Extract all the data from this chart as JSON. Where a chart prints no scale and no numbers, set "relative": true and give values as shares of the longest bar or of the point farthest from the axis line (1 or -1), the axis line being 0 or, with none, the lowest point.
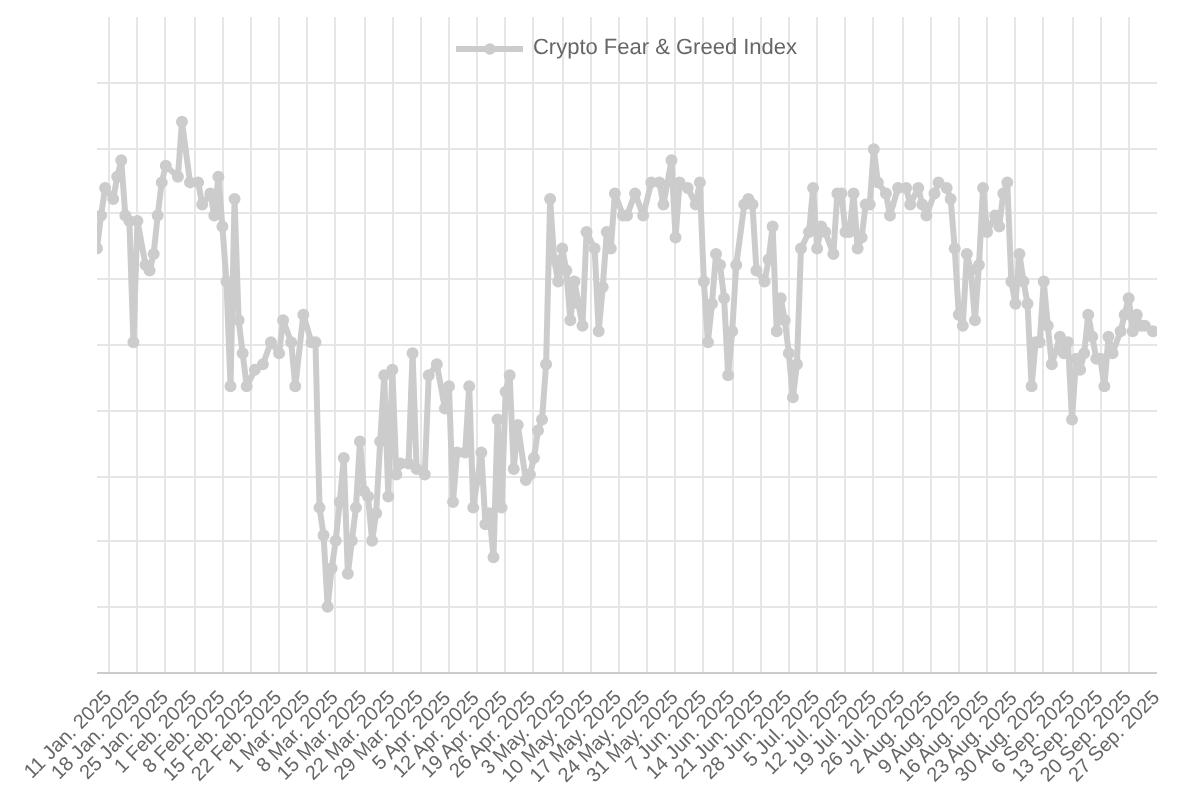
{
  "chart_data": {
    "type": "line",
    "relative": true,
    "grid": true,
    "legend": "top",
    "marker": "circle",
    "line_style": "solid",
    "xlim": [
      "2025-01-08",
      "2025-09-27"
    ],
    "xticks": [
      {
        "value": "2025-01-11",
        "label": "11 Jan. 2025"
      },
      {
        "value": "2025-01-18",
        "label": "18 Jan. 2025"
      },
      {
        "value": "2025-01-25",
        "label": "25 Jan. 2025"
      },
      {
        "value": "2025-02-01",
        "label": "1 Feb. 2025"
      },
      {
        "value": "2025-02-08",
        "label": "8 Feb. 2025"
      },
      {
        "value": "2025-02-15",
        "label": "15 Feb. 2025"
      },
      {
        "value": "2025-02-22",
        "label": "22 Feb. 2025"
      },
      {
        "value": "2025-03-01",
        "label": "1 Mar. 2025"
      },
      {
        "value": "2025-03-08",
        "label": "8 Mar. 2025"
      },
      {
        "value": "2025-03-15",
        "label": "15 Mar. 2025"
      },
      {
        "value": "2025-03-22",
        "label": "22 Mar. 2025"
      },
      {
        "value": "2025-03-29",
        "label": "29 Mar. 2025"
      },
      {
        "value": "2025-04-05",
        "label": "5 Apr. 2025"
      },
      {
        "value": "2025-04-12",
        "label": "12 Apr. 2025"
      },
      {
        "value": "2025-04-19",
        "label": "19 Apr. 2025"
      },
      {
        "value": "2025-04-26",
        "label": "26 Apr. 2025"
      },
      {
        "value": "2025-05-03",
        "label": "3 May. 2025"
      },
      {
        "value": "2025-05-10",
        "label": "10 May. 2025"
      },
      {
        "value": "2025-05-17",
        "label": "17 May. 2025"
      },
      {
        "value": "2025-05-24",
        "label": "24 May. 2025"
      },
      {
        "value": "2025-05-31",
        "label": "31 May. 2025"
      },
      {
        "value": "2025-06-07",
        "label": "7 Jun. 2025"
      },
      {
        "value": "2025-06-14",
        "label": "14 Jun. 2025"
      },
      {
        "value": "2025-06-21",
        "label": "21 Jun. 2025"
      },
      {
        "value": "2025-06-28",
        "label": "28 Jun. 2025"
      },
      {
        "value": "2025-07-05",
        "label": "5 Jul. 2025"
      },
      {
        "value": "2025-07-12",
        "label": "12 Jul. 2025"
      },
      {
        "value": "2025-07-19",
        "label": "19 Jul. 2025"
      },
      {
        "value": "2025-07-26",
        "label": "26 Jul. 2025"
      },
      {
        "value": "2025-08-02",
        "label": "2 Aug. 2025"
      },
      {
        "value": "2025-08-09",
        "label": "9 Aug. 2025"
      },
      {
        "value": "2025-08-16",
        "label": "16 Aug. 2025"
      },
      {
        "value": "2025-08-23",
        "label": "23 Aug. 2025"
      },
      {
        "value": "2025-08-30",
        "label": "30 Aug. 2025"
      },
      {
        "value": "2025-09-06",
        "label": "6 Sep. 2025"
      },
      {
        "value": "2025-09-13",
        "label": "13 Sep. 2025"
      },
      {
        "value": "2025-09-20",
        "label": "20 Sep. 2025"
      },
      {
        "value": "2025-09-27",
        "label": "27 Sep. 2025"
      }
    ],
    "x": [
      "2025-01-08",
      "2025-01-09",
      "2025-01-10",
      "2025-01-12",
      "2025-01-13",
      "2025-01-14",
      "2025-01-15",
      "2025-01-16",
      "2025-01-17",
      "2025-01-18",
      "2025-01-20",
      "2025-01-21",
      "2025-01-22",
      "2025-01-23",
      "2025-01-24",
      "2025-01-25",
      "2025-01-28",
      "2025-01-29",
      "2025-01-31",
      "2025-02-02",
      "2025-02-03",
      "2025-02-05",
      "2025-02-06",
      "2025-02-07",
      "2025-02-08",
      "2025-02-09",
      "2025-02-10",
      "2025-02-11",
      "2025-02-12",
      "2025-02-13",
      "2025-02-14",
      "2025-02-16",
      "2025-02-18",
      "2025-02-20",
      "2025-02-22",
      "2025-02-23",
      "2025-02-25",
      "2025-02-26",
      "2025-02-28",
      "2025-03-02",
      "2025-03-03",
      "2025-03-04",
      "2025-03-05",
      "2025-03-06",
      "2025-03-07",
      "2025-03-08",
      "2025-03-09",
      "2025-03-10",
      "2025-03-11",
      "2025-03-12",
      "2025-03-13",
      "2025-03-14",
      "2025-03-15",
      "2025-03-16",
      "2025-03-17",
      "2025-03-18",
      "2025-03-19",
      "2025-03-20",
      "2025-03-21",
      "2025-03-22",
      "2025-03-23",
      "2025-03-24",
      "2025-03-26",
      "2025-03-27",
      "2025-03-28",
      "2025-03-30",
      "2025-03-31",
      "2025-04-02",
      "2025-04-04",
      "2025-04-05",
      "2025-04-06",
      "2025-04-07",
      "2025-04-09",
      "2025-04-10",
      "2025-04-11",
      "2025-04-12",
      "2025-04-13",
      "2025-04-14",
      "2025-04-15",
      "2025-04-16",
      "2025-04-17",
      "2025-04-18",
      "2025-04-19",
      "2025-04-20",
      "2025-04-21",
      "2025-04-22",
      "2025-04-24",
      "2025-04-25",
      "2025-04-26",
      "2025-04-27",
      "2025-04-28",
      "2025-04-29",
      "2025-04-30",
      "2025-05-01",
      "2025-05-02",
      "2025-05-03",
      "2025-05-04",
      "2025-05-05",
      "2025-05-06",
      "2025-05-07",
      "2025-05-08",
      "2025-05-09",
      "2025-05-11",
      "2025-05-12",
      "2025-05-13",
      "2025-05-14",
      "2025-05-15",
      "2025-05-16",
      "2025-05-18",
      "2025-05-19",
      "2025-05-21",
      "2025-05-23",
      "2025-05-25",
      "2025-05-27",
      "2025-05-28",
      "2025-05-30",
      "2025-05-31",
      "2025-06-01",
      "2025-06-03",
      "2025-06-05",
      "2025-06-06",
      "2025-06-07",
      "2025-06-08",
      "2025-06-09",
      "2025-06-10",
      "2025-06-11",
      "2025-06-12",
      "2025-06-13",
      "2025-06-14",
      "2025-06-15",
      "2025-06-17",
      "2025-06-18",
      "2025-06-19",
      "2025-06-20",
      "2025-06-22",
      "2025-06-23",
      "2025-06-24",
      "2025-06-25",
      "2025-06-26",
      "2025-06-27",
      "2025-06-28",
      "2025-06-29",
      "2025-06-30",
      "2025-07-01",
      "2025-07-03",
      "2025-07-04",
      "2025-07-05",
      "2025-07-06",
      "2025-07-07",
      "2025-07-09",
      "2025-07-10",
      "2025-07-11",
      "2025-07-12",
      "2025-07-13",
      "2025-07-14",
      "2025-07-15",
      "2025-07-16",
      "2025-07-17",
      "2025-07-18",
      "2025-07-19",
      "2025-07-20",
      "2025-07-22",
      "2025-07-23",
      "2025-07-25",
      "2025-07-27",
      "2025-07-28",
      "2025-07-30",
      "2025-07-31",
      "2025-08-01",
      "2025-08-03",
      "2025-08-04",
      "2025-08-06",
      "2025-08-07",
      "2025-08-08",
      "2025-08-09",
      "2025-08-10",
      "2025-08-11",
      "2025-08-12",
      "2025-08-13",
      "2025-08-14",
      "2025-08-15",
      "2025-08-16",
      "2025-08-18",
      "2025-08-19",
      "2025-08-20",
      "2025-08-21",
      "2025-08-22",
      "2025-08-23",
      "2025-08-24",
      "2025-08-25",
      "2025-08-26",
      "2025-08-27",
      "2025-08-28",
      "2025-08-29",
      "2025-08-30",
      "2025-08-31",
      "2025-09-01",
      "2025-09-03",
      "2025-09-04",
      "2025-09-05",
      "2025-09-06",
      "2025-09-07",
      "2025-09-08",
      "2025-09-09",
      "2025-09-10",
      "2025-09-11",
      "2025-09-12",
      "2025-09-13",
      "2025-09-14",
      "2025-09-15",
      "2025-09-16",
      "2025-09-18",
      "2025-09-19",
      "2025-09-20",
      "2025-09-21",
      "2025-09-22",
      "2025-09-23",
      "2025-09-24",
      "2025-09-26"
    ],
    "series": [
      {
        "name": "Crypto Fear & Greed Index",
        "color": "#cccccc",
        "values": [
          0.77,
          0.83,
          0.88,
          0.86,
          0.9,
          0.93,
          0.83,
          0.82,
          0.6,
          0.82,
          0.74,
          0.73,
          0.76,
          0.83,
          0.89,
          0.92,
          0.9,
          1,
          0.89,
          0.89,
          0.85,
          0.87,
          0.83,
          0.9,
          0.81,
          0.71,
          0.52,
          0.86,
          0.64,
          0.58,
          0.52,
          0.55,
          0.56,
          0.6,
          0.58,
          0.64,
          0.6,
          0.52,
          0.65,
          0.6,
          0.6,
          0.3,
          0.25,
          0.12,
          0.19,
          0.24,
          0.31,
          0.39,
          0.18,
          0.24,
          0.3,
          0.42,
          0.33,
          0.32,
          0.24,
          0.29,
          0.42,
          0.54,
          0.32,
          0.55,
          0.36,
          0.38,
          0.38,
          0.58,
          0.37,
          0.36,
          0.54,
          0.56,
          0.48,
          0.52,
          0.31,
          0.4,
          0.4,
          0.52,
          0.3,
          0.35,
          0.4,
          0.27,
          0.29,
          0.21,
          0.46,
          0.3,
          0.51,
          0.54,
          0.37,
          0.45,
          0.35,
          0.36,
          0.39,
          0.44,
          0.46,
          0.56,
          0.86,
          0.75,
          0.71,
          0.77,
          0.73,
          0.64,
          0.71,
          0.67,
          0.63,
          0.8,
          0.77,
          0.62,
          0.7,
          0.8,
          0.77,
          0.87,
          0.83,
          0.83,
          0.87,
          0.83,
          0.89,
          0.89,
          0.85,
          0.93,
          0.79,
          0.89,
          0.88,
          0.85,
          0.89,
          0.71,
          0.6,
          0.67,
          0.76,
          0.74,
          0.68,
          0.54,
          0.62,
          0.74,
          0.85,
          0.86,
          0.85,
          0.73,
          0.71,
          0.75,
          0.81,
          0.62,
          0.68,
          0.64,
          0.58,
          0.5,
          0.56,
          0.77,
          0.8,
          0.88,
          0.77,
          0.81,
          0.8,
          0.76,
          0.87,
          0.87,
          0.8,
          0.8,
          0.87,
          0.77,
          0.79,
          0.85,
          0.85,
          0.95,
          0.89,
          0.87,
          0.83,
          0.88,
          0.88,
          0.85,
          0.88,
          0.85,
          0.83,
          0.87,
          0.89,
          0.88,
          0.86,
          0.77,
          0.65,
          0.63,
          0.76,
          0.73,
          0.64,
          0.74,
          0.88,
          0.8,
          0.83,
          0.81,
          0.87,
          0.89,
          0.71,
          0.67,
          0.76,
          0.71,
          0.67,
          0.52,
          0.6,
          0.6,
          0.71,
          0.63,
          0.56,
          0.61,
          0.58,
          0.6,
          0.46,
          0.57,
          0.55,
          0.58,
          0.65,
          0.61,
          0.57,
          0.57,
          0.52,
          0.61,
          0.58,
          0.62,
          0.65,
          0.68,
          0.62,
          0.65,
          0.63,
          0.63,
          0.62
        ]
      }
    ]
  }
}
